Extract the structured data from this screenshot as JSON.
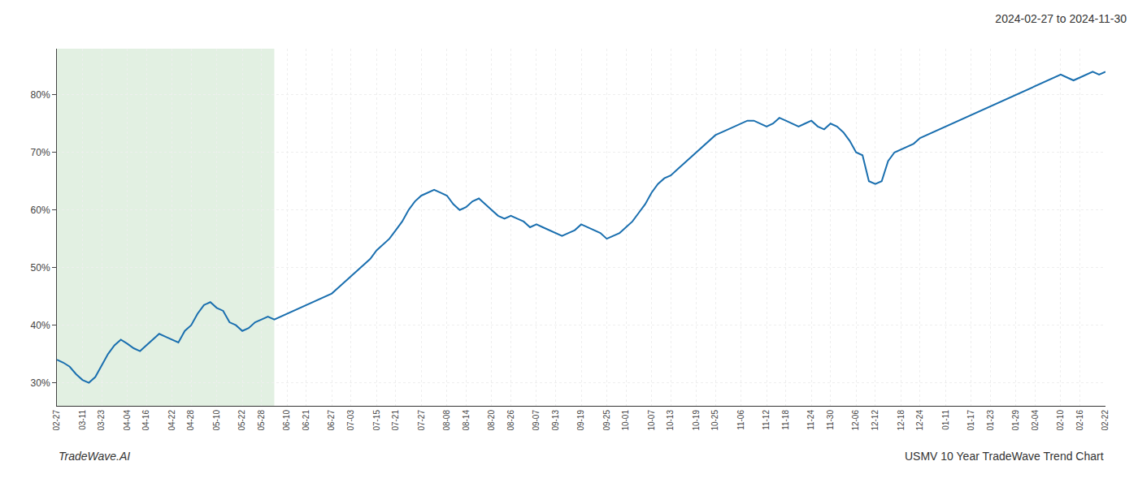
{
  "chart_data": {
    "type": "line",
    "title": "2024-02-27 to 2024-11-30",
    "annotations": [
      "TradeWave.AI",
      "USMV 10 Year TradeWave Trend Chart"
    ],
    "color": "#1a6faf",
    "grid": true,
    "ylim": [
      26,
      88
    ],
    "yticks": [
      {
        "value": 30,
        "label": "30%"
      },
      {
        "value": 40,
        "label": "40%"
      },
      {
        "value": 50,
        "label": "50%"
      },
      {
        "value": 60,
        "label": "60%"
      },
      {
        "value": 70,
        "label": "70%"
      },
      {
        "value": 80,
        "label": "80%"
      }
    ],
    "shaded_region": {
      "start": 0,
      "end": 34,
      "color": "#d6ead6"
    },
    "categories": [
      "02-27",
      null,
      null,
      null,
      "03-11",
      null,
      null,
      "03-23",
      null,
      null,
      null,
      "04-04",
      null,
      null,
      "04-16",
      null,
      null,
      null,
      "04-22",
      null,
      null,
      "04-28",
      null,
      null,
      null,
      "05-10",
      null,
      null,
      null,
      "05-22",
      null,
      null,
      "05-28",
      null,
      null,
      null,
      "06-10",
      null,
      null,
      "06-21",
      null,
      null,
      null,
      "06-27",
      null,
      null,
      "07-03",
      null,
      null,
      null,
      "07-15",
      null,
      null,
      "07-21",
      null,
      null,
      null,
      "07-27",
      null,
      null,
      null,
      "08-08",
      null,
      null,
      "08-14",
      null,
      null,
      null,
      "08-20",
      null,
      null,
      "08-26",
      null,
      null,
      null,
      "09-07",
      null,
      null,
      "09-13",
      null,
      null,
      null,
      "09-19",
      null,
      null,
      null,
      "09-25",
      null,
      null,
      "10-01",
      null,
      null,
      null,
      "10-07",
      null,
      null,
      "10-13",
      null,
      null,
      null,
      "10-19",
      null,
      null,
      "10-25",
      null,
      null,
      null,
      "11-06",
      null,
      null,
      null,
      "11-12",
      null,
      null,
      "11-18",
      null,
      null,
      null,
      "11-24",
      null,
      null,
      "11-30",
      null,
      null,
      null,
      "12-06",
      null,
      null,
      "12-12",
      null,
      null,
      null,
      "12-18",
      null,
      null,
      "12-24",
      null,
      null,
      null,
      "01-11",
      null,
      null,
      null,
      "01-17",
      null,
      null,
      "01-23",
      null,
      null,
      null,
      "01-29",
      null,
      null,
      "02-04",
      null,
      null,
      null,
      "02-10",
      null,
      null,
      "02-16",
      null,
      null,
      null,
      "02-22"
    ],
    "values": [
      34.0,
      33.5,
      32.8,
      31.5,
      30.5,
      30.0,
      31.0,
      33.0,
      35.0,
      36.5,
      37.5,
      36.8,
      36.0,
      35.5,
      36.5,
      37.5,
      38.5,
      38.0,
      37.5,
      37.0,
      39.0,
      40.0,
      42.0,
      43.5,
      44.0,
      43.0,
      42.5,
      40.5,
      40.0,
      39.0,
      39.5,
      40.5,
      41.0,
      41.5,
      41.0,
      41.5,
      42.0,
      42.5,
      43.0,
      43.5,
      44.0,
      44.5,
      45.0,
      45.5,
      46.5,
      47.5,
      48.5,
      49.5,
      50.5,
      51.5,
      53.0,
      54.0,
      55.0,
      56.5,
      58.0,
      60.0,
      61.5,
      62.5,
      63.0,
      63.5,
      63.0,
      62.5,
      61.0,
      60.0,
      60.5,
      61.5,
      62.0,
      61.0,
      60.0,
      59.0,
      58.5,
      59.0,
      58.5,
      58.0,
      57.0,
      57.5,
      57.0,
      56.5,
      56.0,
      55.5,
      56.0,
      56.5,
      57.5,
      57.0,
      56.5,
      56.0,
      55.0,
      55.5,
      56.0,
      57.0,
      58.0,
      59.5,
      61.0,
      63.0,
      64.5,
      65.5,
      66.0,
      67.0,
      68.0,
      69.0,
      70.0,
      71.0,
      72.0,
      73.0,
      73.5,
      74.0,
      74.5,
      75.0,
      75.5,
      75.5,
      75.0,
      74.5,
      75.0,
      76.0,
      75.5,
      75.0,
      74.5,
      75.0,
      75.5,
      74.5,
      74.0,
      75.0,
      74.5,
      73.5,
      72.0,
      70.0,
      69.5,
      65.0,
      64.5,
      65.0,
      68.5,
      70.0,
      70.5,
      71.0,
      71.5,
      72.5,
      73.0,
      73.5,
      74.0,
      74.5,
      75.0,
      75.5,
      76.0,
      76.5,
      77.0,
      77.5,
      78.0,
      78.5,
      79.0,
      79.5,
      80.0,
      80.5,
      81.0,
      81.5,
      82.0,
      82.5,
      83.0,
      83.5,
      83.0,
      82.5,
      83.0,
      83.5,
      84.0,
      83.5,
      84.0
    ]
  }
}
